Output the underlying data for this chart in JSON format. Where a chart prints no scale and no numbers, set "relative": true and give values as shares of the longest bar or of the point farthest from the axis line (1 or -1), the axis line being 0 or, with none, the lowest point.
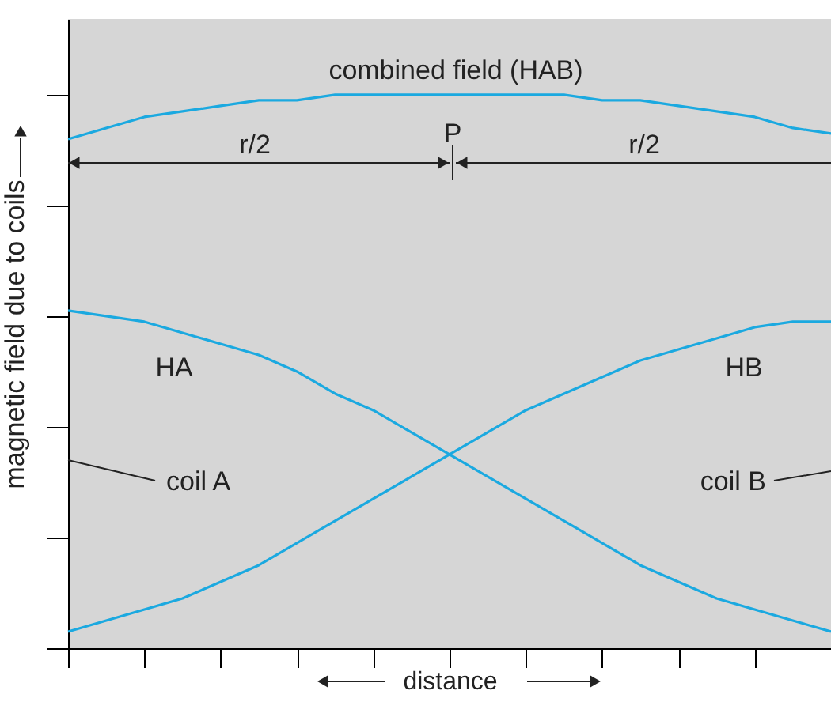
{
  "chart_data": {
    "type": "line",
    "relative": true,
    "xlabel": "distance",
    "ylabel": "magnetic field due to coils",
    "categories": [
      null,
      null,
      null,
      null,
      null,
      null,
      null,
      null,
      null,
      null,
      null,
      null,
      null,
      null,
      null,
      null,
      null,
      null,
      null,
      null,
      null
    ],
    "series": [
      {
        "name": "combined field (HAB)",
        "color": "#1ba9e0",
        "values": [
          0.92,
          0.94,
          0.96,
          0.97,
          0.98,
          0.99,
          0.99,
          1.0,
          1.0,
          1.0,
          1.0,
          1.0,
          1.0,
          1.0,
          0.99,
          0.99,
          0.98,
          0.97,
          0.96,
          0.94,
          0.93
        ]
      },
      {
        "name": "HA",
        "color": "#1ba9e0",
        "values": [
          0.61,
          0.6,
          0.59,
          0.57,
          0.55,
          0.53,
          0.5,
          0.46,
          0.43,
          0.39,
          0.35,
          0.31,
          0.27,
          0.23,
          0.19,
          0.15,
          0.12,
          0.09,
          0.07,
          0.05,
          0.03
        ]
      },
      {
        "name": "HB",
        "color": "#1ba9e0",
        "values": [
          0.03,
          0.05,
          0.07,
          0.09,
          0.12,
          0.15,
          0.19,
          0.23,
          0.27,
          0.31,
          0.35,
          0.39,
          0.43,
          0.46,
          0.49,
          0.52,
          0.54,
          0.56,
          0.58,
          0.59,
          0.59
        ]
      }
    ],
    "annotations": [
      "P",
      "r/2",
      "r/2",
      "coil A",
      "coil B"
    ],
    "grid": false,
    "legend": false,
    "marker": "none",
    "line_style": "solid"
  }
}
